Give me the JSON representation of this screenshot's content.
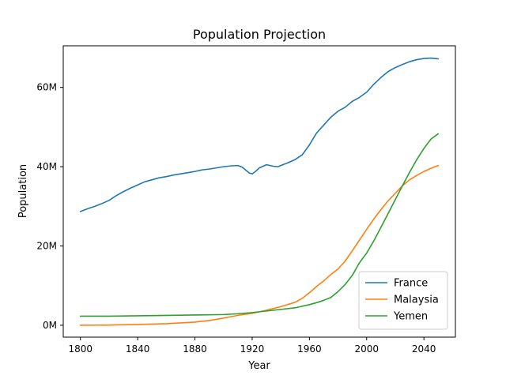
{
  "chart_data": {
    "type": "line",
    "title": "Population Projection",
    "xlabel": "Year",
    "ylabel": "Population",
    "xlim": [
      1788,
      2062
    ],
    "ylim": [
      -3000000,
      70500000
    ],
    "xticks": [
      1800,
      1840,
      1880,
      1920,
      1960,
      2000,
      2040
    ],
    "xtick_labels": [
      "1800",
      "1840",
      "1880",
      "1920",
      "1960",
      "2000",
      "2040"
    ],
    "yticks": [
      0,
      20000000,
      40000000,
      60000000
    ],
    "ytick_labels": [
      "0M",
      "20M",
      "40M",
      "60M"
    ],
    "grid": false,
    "legend_position": "lower-right",
    "series": [
      {
        "name": "France",
        "color": "#1f77b4",
        "x": [
          1800,
          1805,
          1810,
          1815,
          1820,
          1825,
          1830,
          1835,
          1840,
          1845,
          1850,
          1855,
          1860,
          1865,
          1870,
          1875,
          1880,
          1885,
          1890,
          1895,
          1900,
          1905,
          1910,
          1913,
          1916,
          1918,
          1920,
          1922,
          1925,
          1930,
          1935,
          1938,
          1940,
          1945,
          1950,
          1955,
          1960,
          1965,
          1970,
          1975,
          1980,
          1985,
          1990,
          1995,
          2000,
          2005,
          2010,
          2015,
          2020,
          2025,
          2030,
          2035,
          2040,
          2045,
          2050
        ],
        "y": [
          28700000,
          29400000,
          30000000,
          30700000,
          31500000,
          32700000,
          33700000,
          34600000,
          35400000,
          36200000,
          36700000,
          37200000,
          37500000,
          37900000,
          38200000,
          38500000,
          38800000,
          39200000,
          39400000,
          39700000,
          40000000,
          40200000,
          40300000,
          39900000,
          39000000,
          38400000,
          38200000,
          38700000,
          39700000,
          40500000,
          40100000,
          40000000,
          40300000,
          41000000,
          41800000,
          43000000,
          45500000,
          48500000,
          50500000,
          52500000,
          54000000,
          55000000,
          56500000,
          57500000,
          58800000,
          60800000,
          62500000,
          64000000,
          65000000,
          65800000,
          66500000,
          67000000,
          67300000,
          67400000,
          67200000
        ]
      },
      {
        "name": "Malaysia",
        "color": "#ff7f0e",
        "x": [
          1800,
          1820,
          1840,
          1860,
          1870,
          1880,
          1890,
          1900,
          1910,
          1920,
          1930,
          1940,
          1950,
          1955,
          1960,
          1965,
          1970,
          1975,
          1980,
          1985,
          1990,
          1995,
          2000,
          2005,
          2010,
          2015,
          2020,
          2025,
          2030,
          2035,
          2040,
          2045,
          2050
        ],
        "y": [
          0,
          50000,
          200000,
          400000,
          600000,
          800000,
          1200000,
          1800000,
          2500000,
          3000000,
          3800000,
          4700000,
          5800000,
          6800000,
          8200000,
          9800000,
          11200000,
          12800000,
          14200000,
          16200000,
          18800000,
          21500000,
          24200000,
          26800000,
          29200000,
          31400000,
          33300000,
          35200000,
          36700000,
          37800000,
          38800000,
          39600000,
          40300000
        ]
      },
      {
        "name": "Yemen",
        "color": "#2ca02c",
        "x": [
          1800,
          1820,
          1840,
          1860,
          1880,
          1900,
          1910,
          1920,
          1930,
          1940,
          1950,
          1955,
          1960,
          1965,
          1970,
          1975,
          1980,
          1985,
          1990,
          1995,
          2000,
          2005,
          2010,
          2015,
          2020,
          2025,
          2030,
          2035,
          2040,
          2045,
          2050
        ],
        "y": [
          2300000,
          2300000,
          2400000,
          2500000,
          2600000,
          2700000,
          2900000,
          3200000,
          3600000,
          4000000,
          4400000,
          4800000,
          5200000,
          5700000,
          6300000,
          7000000,
          8500000,
          10300000,
          12600000,
          15800000,
          18200000,
          21300000,
          24700000,
          28200000,
          31700000,
          35200000,
          38600000,
          41800000,
          44600000,
          47000000,
          48300000
        ]
      }
    ]
  }
}
